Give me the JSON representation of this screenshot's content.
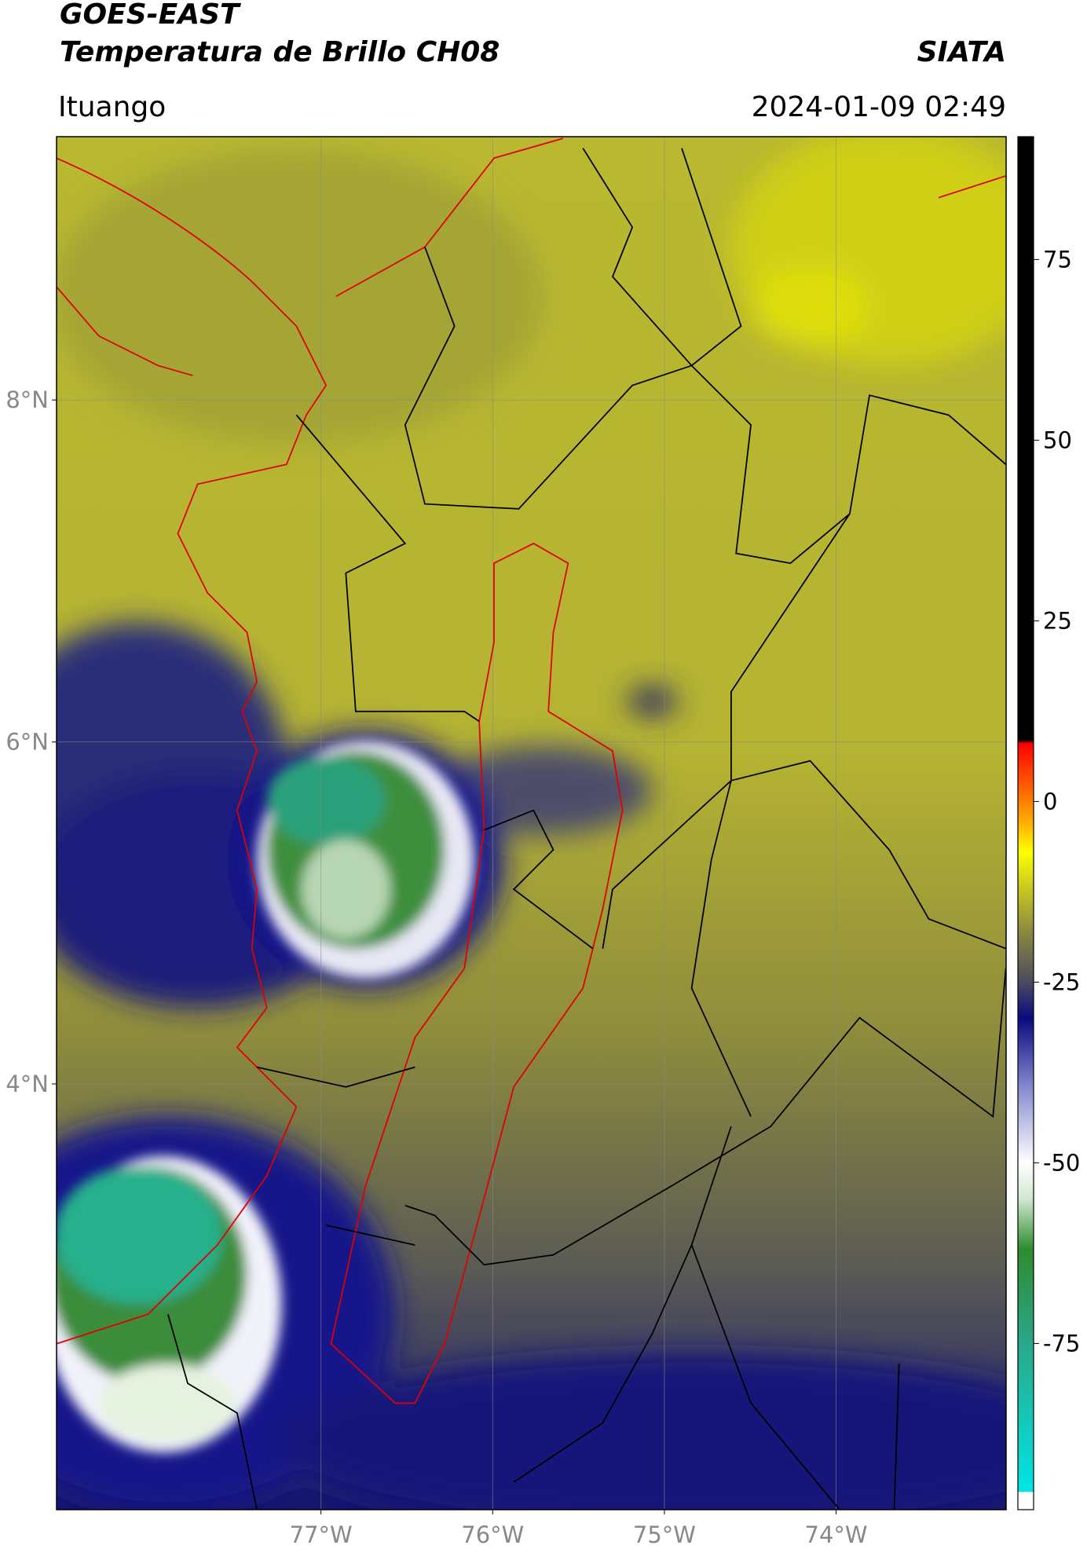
{
  "header": {
    "title": "GOES-EAST",
    "subtitle": "Temperatura de Brillo CH08",
    "source": "SIATA",
    "location": "Ituango",
    "datetime": "2024-01-09 02:49"
  },
  "map": {
    "xlim": [
      -78.54,
      -73.01
    ],
    "ylim": [
      1.51,
      9.54
    ],
    "xticks": [
      {
        "value": -77,
        "label": "77°W"
      },
      {
        "value": -76,
        "label": "76°W"
      },
      {
        "value": -75,
        "label": "75°W"
      },
      {
        "value": -74,
        "label": "74°W"
      }
    ],
    "yticks": [
      {
        "value": 4,
        "label": "4°N"
      },
      {
        "value": 6,
        "label": "6°N"
      },
      {
        "value": 8,
        "label": "8°N"
      }
    ],
    "grid": true
  },
  "colorbar": {
    "lim": [
      -98,
      92
    ],
    "ticks": [
      -75,
      -50,
      -25,
      0,
      25,
      50,
      75
    ],
    "stops": [
      {
        "value": -98,
        "color": "#ffffff"
      },
      {
        "value": -95.6,
        "color": "#ffffff"
      },
      {
        "value": -95.5,
        "color": "#00e5e5"
      },
      {
        "value": -75,
        "color": "#2aa88a"
      },
      {
        "value": -62,
        "color": "#2e8b2e"
      },
      {
        "value": -55,
        "color": "#cfe8cf"
      },
      {
        "value": -50,
        "color": "#ffffff"
      },
      {
        "value": -40,
        "color": "#8a8fd0"
      },
      {
        "value": -30,
        "color": "#0a0a80"
      },
      {
        "value": -25,
        "color": "#4a4a60"
      },
      {
        "value": -18,
        "color": "#8a8a40"
      },
      {
        "value": -12,
        "color": "#c8c820"
      },
      {
        "value": -7,
        "color": "#ffff00"
      },
      {
        "value": -3,
        "color": "#ffb000"
      },
      {
        "value": 2,
        "color": "#ff6000"
      },
      {
        "value": 8,
        "color": "#ff0000"
      },
      {
        "value": 8.5,
        "color": "#000000"
      },
      {
        "value": 92,
        "color": "#000000"
      }
    ]
  }
}
